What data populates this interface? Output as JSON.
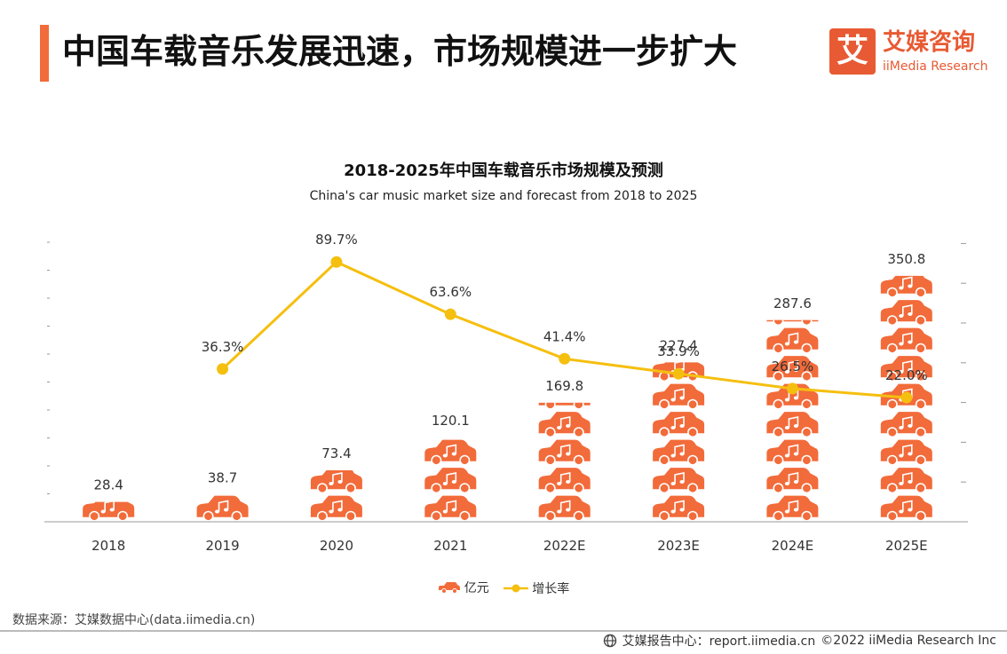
{
  "header": {
    "title": "中国车载音乐发展迅速，市场规模进一步扩大",
    "logo_glyph": "艾",
    "logo_cn": "艾媒咨询",
    "logo_en": "iiMedia Research"
  },
  "colors": {
    "accent": "#f26b3a",
    "bar": "#f26b3a",
    "line": "#f5bf0f"
  },
  "chart_data": {
    "type": "bar",
    "title": "2018-2025年中国车载音乐市场规模及预测",
    "subtitle": "China's car music market size and forecast from 2018 to 2025",
    "categories": [
      "2018",
      "2019",
      "2020",
      "2021",
      "2022E",
      "2023E",
      "2024E",
      "2025E"
    ],
    "series": [
      {
        "name": "亿元",
        "type": "bar",
        "values": [
          28.4,
          38.7,
          73.4,
          120.1,
          169.8,
          227.4,
          287.6,
          350.8
        ],
        "labels": [
          "28.4",
          "38.7",
          "73.4",
          "120.1",
          "169.8",
          "227.4",
          "287.6",
          "350.8"
        ]
      },
      {
        "name": "增长率",
        "type": "line",
        "values": [
          null,
          36.3,
          89.7,
          63.6,
          41.4,
          33.9,
          26.5,
          22.0
        ],
        "labels": [
          "",
          "36.3%",
          "89.7%",
          "63.6%",
          "41.4%",
          "33.9%",
          "26.5%",
          "22.0%"
        ]
      }
    ],
    "ylim": [
      0,
      400
    ],
    "y2lim": [
      -40,
      100
    ]
  },
  "source": "数据来源：艾媒数据中心(data.iimedia.cn)",
  "footer": {
    "site": "艾媒报告中心：report.iimedia.cn",
    "copyright": "©2022  iiMedia Research  Inc"
  }
}
